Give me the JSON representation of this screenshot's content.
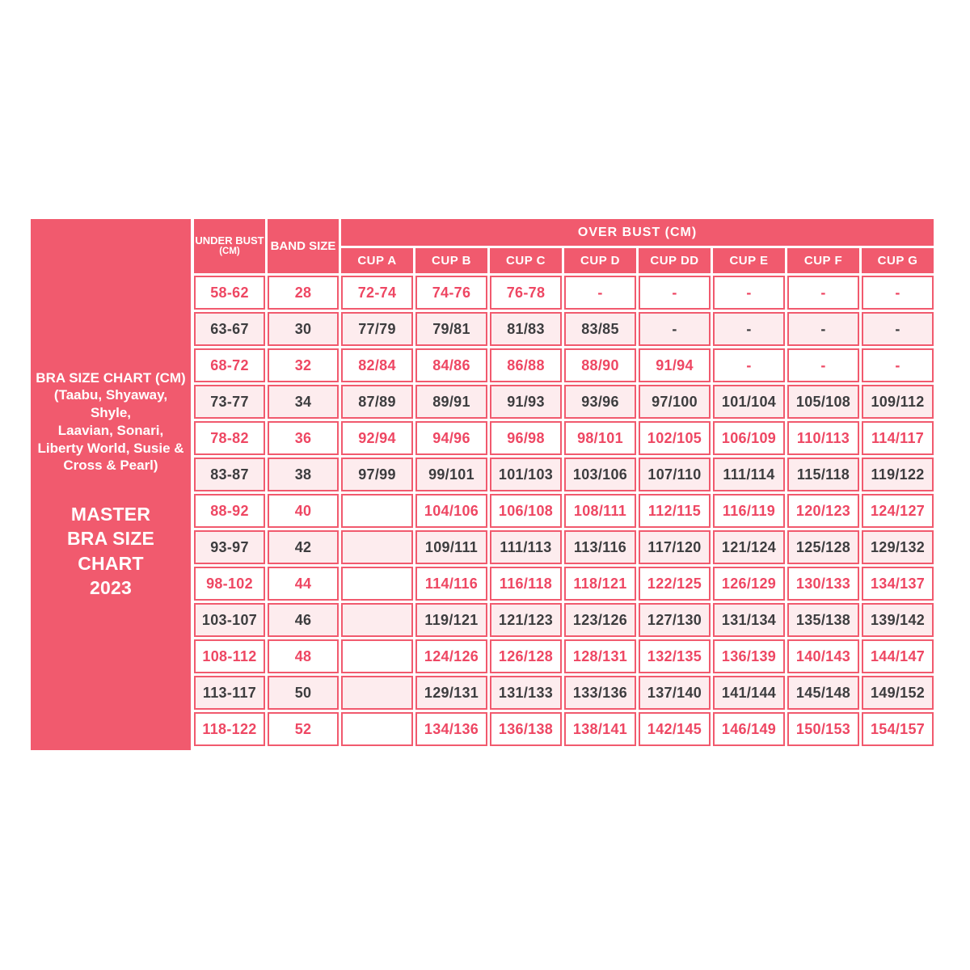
{
  "colors": {
    "primary_pink": "#F15A6E",
    "light_row_bg": "#FDECEE",
    "pink_text": "#EE4763",
    "dark_text": "#3D3D3F",
    "header_text": "#FFFFFF"
  },
  "sidebar": {
    "scope_lines": [
      "BRA SIZE CHART (CM)",
      "(Taabu, Shyaway, Shyle,",
      "Laavian, Sonari,",
      "Liberty World, Susie &",
      "Cross & Pearl)"
    ],
    "master_lines": [
      "MASTER",
      "BRA SIZE CHART",
      "2023"
    ]
  },
  "table": {
    "headers": {
      "under_bust": "UNDER BUST",
      "under_bust_unit": "(CM)",
      "band_size": "BAND SIZE",
      "over_bust": "OVER BUST  (CM)",
      "cups": [
        "CUP A",
        "CUP B",
        "CUP C",
        "CUP D",
        "CUP DD",
        "CUP E",
        "CUP F",
        "CUP G"
      ]
    }
  },
  "chart_data": {
    "type": "table",
    "title": "MASTER BRA SIZE CHART 2023",
    "subtitle": "BRA SIZE CHART (CM) (Taabu, Shyaway, Shyle, Laavian, Sonari, Liberty World, Susie & Cross & Pearl)",
    "columns": [
      "UNDER BUST (CM)",
      "BAND SIZE",
      "CUP A",
      "CUP B",
      "CUP C",
      "CUP D",
      "CUP DD",
      "CUP E",
      "CUP F",
      "CUP G"
    ],
    "rows": [
      [
        "58-62",
        "28",
        "72-74",
        "74-76",
        "76-78",
        "-",
        "-",
        "-",
        "-",
        "-"
      ],
      [
        "63-67",
        "30",
        "77/79",
        "79/81",
        "81/83",
        "83/85",
        "-",
        "-",
        "-",
        "-"
      ],
      [
        "68-72",
        "32",
        "82/84",
        "84/86",
        "86/88",
        "88/90",
        "91/94",
        "-",
        "-",
        "-"
      ],
      [
        "73-77",
        "34",
        "87/89",
        "89/91",
        "91/93",
        "93/96",
        "97/100",
        "101/104",
        "105/108",
        "109/112"
      ],
      [
        "78-82",
        "36",
        "92/94",
        "94/96",
        "96/98",
        "98/101",
        "102/105",
        "106/109",
        "110/113",
        "114/117"
      ],
      [
        "83-87",
        "38",
        "97/99",
        "99/101",
        "101/103",
        "103/106",
        "107/110",
        "111/114",
        "115/118",
        "119/122"
      ],
      [
        "88-92",
        "40",
        "",
        "104/106",
        "106/108",
        "108/111",
        "112/115",
        "116/119",
        "120/123",
        "124/127"
      ],
      [
        "93-97",
        "42",
        "",
        "109/111",
        "111/113",
        "113/116",
        "117/120",
        "121/124",
        "125/128",
        "129/132"
      ],
      [
        "98-102",
        "44",
        "",
        "114/116",
        "116/118",
        "118/121",
        "122/125",
        "126/129",
        "130/133",
        "134/137"
      ],
      [
        "103-107",
        "46",
        "",
        "119/121",
        "121/123",
        "123/126",
        "127/130",
        "131/134",
        "135/138",
        "139/142"
      ],
      [
        "108-112",
        "48",
        "",
        "124/126",
        "126/128",
        "128/131",
        "132/135",
        "136/139",
        "140/143",
        "144/147"
      ],
      [
        "113-117",
        "50",
        "",
        "129/131",
        "131/133",
        "133/136",
        "137/140",
        "141/144",
        "145/148",
        "149/152"
      ],
      [
        "118-122",
        "52",
        "",
        "134/136",
        "136/138",
        "138/141",
        "142/145",
        "146/149",
        "150/153",
        "154/157"
      ]
    ],
    "layout": {
      "row_style_alternation": [
        "pink-text-on-white",
        "dark-text-on-light-pink"
      ],
      "grid": "on",
      "border_color": "#F15A6E"
    }
  }
}
